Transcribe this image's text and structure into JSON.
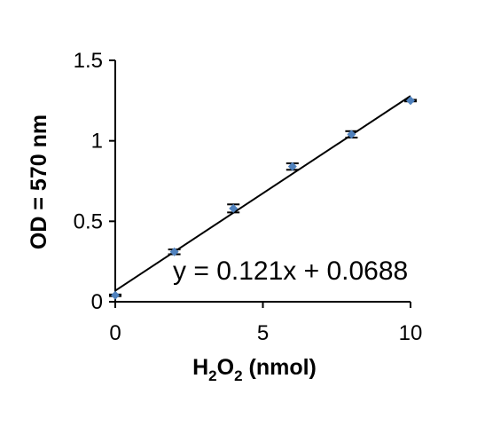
{
  "chart_data": {
    "type": "scatter",
    "title": "",
    "xlabel": {
      "parts": [
        "H",
        "2",
        "O",
        "2",
        " (nmol)"
      ]
    },
    "ylabel": "OD = 570 nm",
    "xlim": [
      0,
      10
    ],
    "ylim": [
      0,
      1.5
    ],
    "x_ticks": [
      {
        "value": 0,
        "label": "0"
      },
      {
        "value": 5,
        "label": "5"
      },
      {
        "value": 10,
        "label": "10"
      }
    ],
    "y_ticks": [
      {
        "value": 0,
        "label": "0"
      },
      {
        "value": 0.5,
        "label": "0.5"
      },
      {
        "value": 1,
        "label": "1"
      },
      {
        "value": 1.5,
        "label": "1.5"
      }
    ],
    "grid": false,
    "series": [
      {
        "x": [
          0,
          2,
          4,
          6,
          8,
          10
        ],
        "y": [
          0.04,
          0.31,
          0.58,
          0.84,
          1.04,
          1.25
        ],
        "error": [
          0.005,
          0.015,
          0.025,
          0.02,
          0.02,
          0.005
        ],
        "color": "#4f81bd"
      }
    ],
    "trendline": {
      "slope": 0.121,
      "intercept": 0.0688,
      "equation": "y = 0.121x + 0.0688",
      "color": "#000000"
    }
  }
}
